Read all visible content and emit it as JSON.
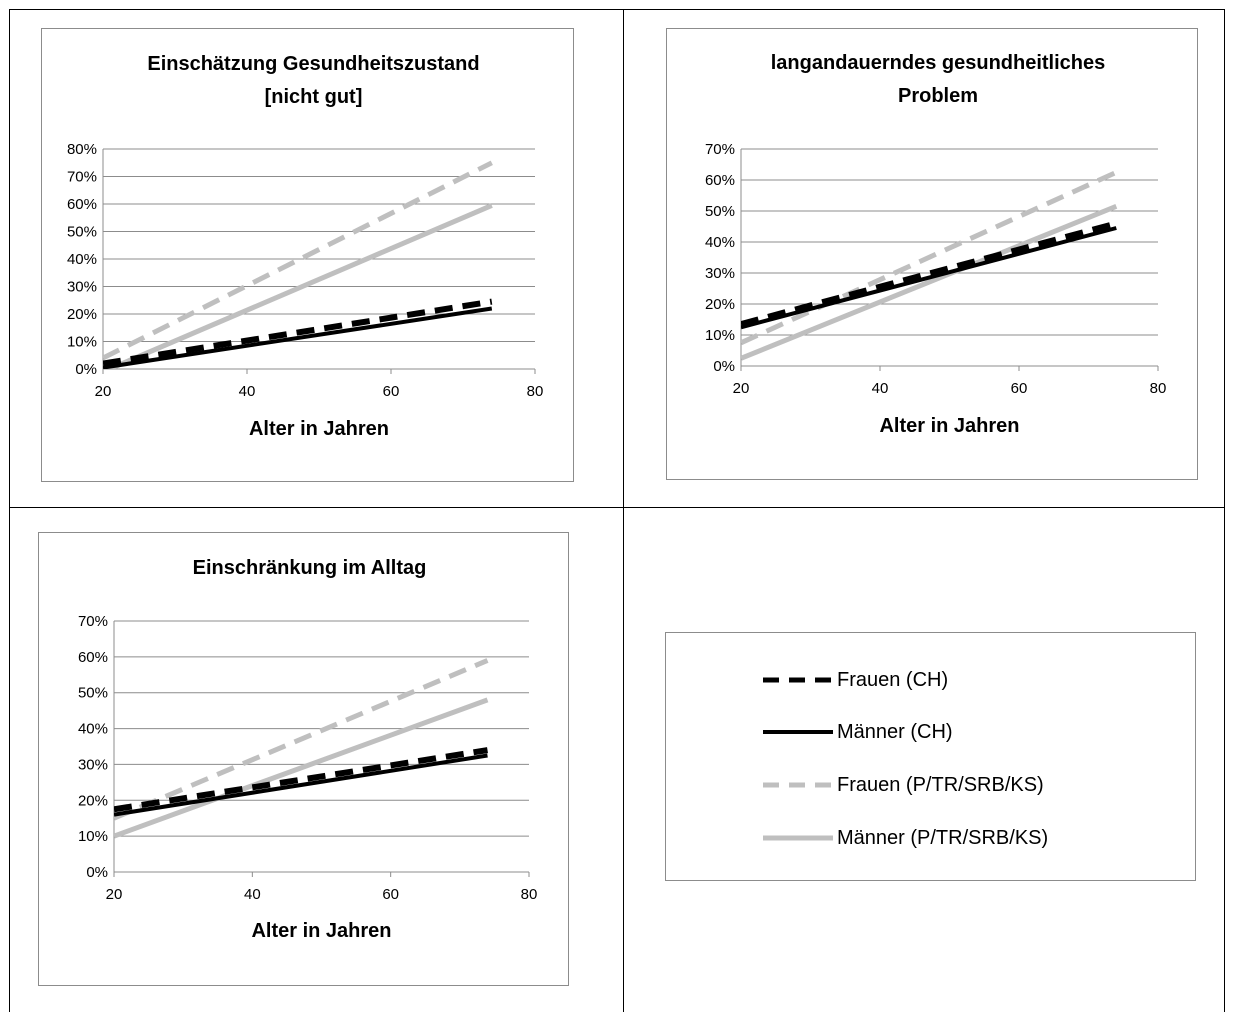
{
  "colors": {
    "frauen_ch": "#000000",
    "maenner_ch": "#000000",
    "frauen_mig": "#bfbfbf",
    "maenner_mig": "#bfbfbf",
    "gridline": "#8c8c8c",
    "frame": "#000000"
  },
  "legend": {
    "items": [
      {
        "label": "Frauen (CH)",
        "color": "#000000",
        "dash": true
      },
      {
        "label": "Männer (CH)",
        "color": "#000000",
        "dash": false
      },
      {
        "label": "Frauen (P/TR/SRB/KS)",
        "color": "#bfbfbf",
        "dash": true
      },
      {
        "label": "Männer (P/TR/SRB/KS)",
        "color": "#bfbfbf",
        "dash": false
      }
    ]
  },
  "chart_data": [
    {
      "type": "line",
      "title": [
        "Einschätzung Gesundheitszustand",
        "[nicht gut]"
      ],
      "xlabel": "Alter in Jahren",
      "ylabel": "",
      "xlim": [
        20,
        80
      ],
      "ylim": [
        0,
        0.8
      ],
      "xticks": [
        "20",
        "40",
        "60",
        "80"
      ],
      "yticks": [
        "0%",
        "10%",
        "20%",
        "30%",
        "40%",
        "50%",
        "60%",
        "70%",
        "80%"
      ],
      "grid": true,
      "series": [
        {
          "name": "Frauen (CH)",
          "x": [
            20,
            74
          ],
          "y": [
            0.02,
            0.245
          ]
        },
        {
          "name": "Männer (CH)",
          "x": [
            20,
            74
          ],
          "y": [
            0.005,
            0.22
          ]
        },
        {
          "name": "Frauen (P/TR/SRB/KS)",
          "x": [
            20,
            74
          ],
          "y": [
            0.04,
            0.75
          ]
        },
        {
          "name": "Männer (P/TR/SRB/KS)",
          "x": [
            20,
            74
          ],
          "y": [
            -0.01,
            0.595
          ]
        }
      ]
    },
    {
      "type": "line",
      "title": [
        "langandauerndes gesundheitliches",
        "Problem"
      ],
      "xlabel": "Alter in Jahren",
      "ylabel": "",
      "xlim": [
        20,
        80
      ],
      "ylim": [
        0,
        0.7
      ],
      "xticks": [
        "20",
        "40",
        "60",
        "80"
      ],
      "yticks": [
        "0%",
        "10%",
        "20%",
        "30%",
        "40%",
        "50%",
        "60%",
        "70%"
      ],
      "grid": true,
      "series": [
        {
          "name": "Frauen (CH)",
          "x": [
            20,
            74
          ],
          "y": [
            0.135,
            0.46
          ]
        },
        {
          "name": "Männer (CH)",
          "x": [
            20,
            74
          ],
          "y": [
            0.125,
            0.445
          ]
        },
        {
          "name": "Frauen (P/TR/SRB/KS)",
          "x": [
            20,
            74
          ],
          "y": [
            0.075,
            0.625
          ]
        },
        {
          "name": "Männer (P/TR/SRB/KS)",
          "x": [
            20,
            74
          ],
          "y": [
            0.025,
            0.515
          ]
        }
      ]
    },
    {
      "type": "line",
      "title": [
        "Einschränkung im Alltag"
      ],
      "xlabel": "Alter in Jahren",
      "ylabel": "",
      "xlim": [
        20,
        80
      ],
      "ylim": [
        0,
        0.7
      ],
      "xticks": [
        "20",
        "40",
        "60",
        "80"
      ],
      "yticks": [
        "0%",
        "10%",
        "20%",
        "30%",
        "40%",
        "50%",
        "60%",
        "70%"
      ],
      "grid": true,
      "series": [
        {
          "name": "Frauen (CH)",
          "x": [
            20,
            74
          ],
          "y": [
            0.175,
            0.34
          ]
        },
        {
          "name": "Männer (CH)",
          "x": [
            20,
            74
          ],
          "y": [
            0.16,
            0.325
          ]
        },
        {
          "name": "Frauen (P/TR/SRB/KS)",
          "x": [
            20,
            74
          ],
          "y": [
            0.15,
            0.59
          ]
        },
        {
          "name": "Männer (P/TR/SRB/KS)",
          "x": [
            20,
            74
          ],
          "y": [
            0.1,
            0.48
          ]
        }
      ]
    }
  ]
}
